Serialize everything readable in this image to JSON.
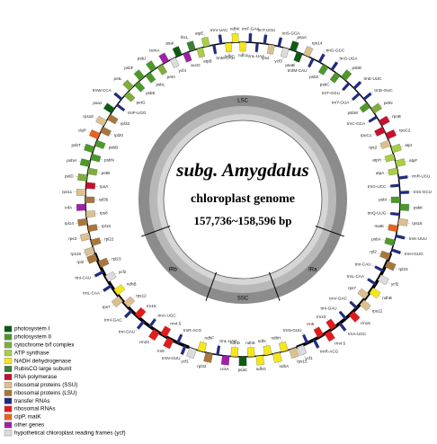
{
  "title": "subg. Amygdalus",
  "subtitle": "chloroplast genome",
  "size": "157,736~158,596 bp",
  "legend": [
    {
      "label": "photosystem I",
      "color": "#0e5a12"
    },
    {
      "label": "photosystem II",
      "color": "#4c9a2a"
    },
    {
      "label": "cytochrome b/f complex",
      "color": "#7fae3c"
    },
    {
      "label": "ATP synthase",
      "color": "#a9cf45"
    },
    {
      "label": "NADH dehydrogenase",
      "color": "#f5e71b"
    },
    {
      "label": "RubisCO large subunit",
      "color": "#3d7f37"
    },
    {
      "label": "RNA polymerase",
      "color": "#c8102e"
    },
    {
      "label": "ribosomal proteins (SSU)",
      "color": "#dcc190"
    },
    {
      "label": "ribosomal proteins (LSU)",
      "color": "#a9773b"
    },
    {
      "label": "transfer RNAs",
      "color": "#1f2a86"
    },
    {
      "label": "ribosomal RNAs",
      "color": "#e41a1c"
    },
    {
      "label": "clpP, matK",
      "color": "#e8641a"
    },
    {
      "label": "other genes",
      "color": "#a020a8"
    },
    {
      "label": "hypothetical chloroplast reading frames (ycf)",
      "color": "#dcdcdc"
    }
  ],
  "regions": [
    {
      "label": "LSC",
      "genes": [
        {
          "label": "trnH-GUG",
          "color": "#1f2a86"
        },
        {
          "label": "psbA",
          "color": "#4c9a2a"
        },
        {
          "label": "trnK-UUU",
          "color": "#1f2a86"
        },
        {
          "label": "matK",
          "color": "#e8641a"
        },
        {
          "label": "rps16",
          "color": "#dcc190"
        },
        {
          "label": "trnQ-UUG",
          "color": "#1f2a86"
        },
        {
          "label": "psbK",
          "color": "#4c9a2a"
        },
        {
          "label": "psbI",
          "color": "#4c9a2a"
        },
        {
          "label": "trnS-GCU",
          "color": "#1f2a86"
        },
        {
          "label": "trnG-UCC",
          "color": "#1f2a86"
        },
        {
          "label": "trnR-UCU",
          "color": "#1f2a86"
        },
        {
          "label": "atpA",
          "color": "#a9cf45"
        },
        {
          "label": "atpF",
          "color": "#a9cf45"
        },
        {
          "label": "atpH",
          "color": "#a9cf45"
        },
        {
          "label": "atpI",
          "color": "#a9cf45"
        },
        {
          "label": "rps2",
          "color": "#dcc190"
        },
        {
          "label": "rpoC2",
          "color": "#c8102e"
        },
        {
          "label": "rpoC1",
          "color": "#c8102e"
        },
        {
          "label": "rpoB",
          "color": "#c8102e"
        },
        {
          "label": "trnC-GCA",
          "color": "#1f2a86"
        },
        {
          "label": "petN",
          "color": "#7fae3c"
        },
        {
          "label": "psbM",
          "color": "#4c9a2a"
        },
        {
          "label": "trnD-GUC",
          "color": "#1f2a86"
        },
        {
          "label": "trnY-GUA",
          "color": "#1f2a86"
        },
        {
          "label": "trnE-UUC",
          "color": "#1f2a86"
        },
        {
          "label": "trnT-GGU",
          "color": "#1f2a86"
        },
        {
          "label": "psbD",
          "color": "#4c9a2a"
        },
        {
          "label": "psbC",
          "color": "#4c9a2a"
        },
        {
          "label": "trnS-UGA",
          "color": "#1f2a86"
        },
        {
          "label": "psbZ",
          "color": "#4c9a2a"
        },
        {
          "label": "trnG-GCC",
          "color": "#1f2a86"
        },
        {
          "label": "trnfM-CAU",
          "color": "#1f2a86"
        },
        {
          "label": "rps14",
          "color": "#dcc190"
        },
        {
          "label": "psaB",
          "color": "#0e5a12"
        },
        {
          "label": "psaA",
          "color": "#0e5a12"
        },
        {
          "label": "ycf3",
          "color": "#dcdcdc"
        },
        {
          "label": "trnS-GGA",
          "color": "#1f2a86"
        },
        {
          "label": "rps4",
          "color": "#dcc190"
        },
        {
          "label": "trnT-UGU",
          "color": "#1f2a86"
        },
        {
          "label": "trnL-UAA",
          "color": "#1f2a86"
        },
        {
          "label": "trnF-GAA",
          "color": "#1f2a86"
        },
        {
          "label": "ndhJ",
          "color": "#f5e71b"
        },
        {
          "label": "ndhK",
          "color": "#f5e71b"
        },
        {
          "label": "ndhC",
          "color": "#f5e71b"
        },
        {
          "label": "trnV-UAC",
          "color": "#1f2a86"
        },
        {
          "label": "trnM-CAU",
          "color": "#1f2a86"
        },
        {
          "label": "atpE",
          "color": "#a9cf45"
        },
        {
          "label": "atpB",
          "color": "#a9cf45"
        },
        {
          "label": "rbcL",
          "color": "#3d7f37"
        },
        {
          "label": "accD",
          "color": "#a020a8"
        },
        {
          "label": "psaI",
          "color": "#0e5a12"
        },
        {
          "label": "ycf4",
          "color": "#dcdcdc"
        },
        {
          "label": "cemA",
          "color": "#a020a8"
        },
        {
          "label": "petA",
          "color": "#7fae3c"
        },
        {
          "label": "psbJ",
          "color": "#4c9a2a"
        },
        {
          "label": "psbL",
          "color": "#4c9a2a"
        },
        {
          "label": "psbF",
          "color": "#4c9a2a"
        },
        {
          "label": "psbE",
          "color": "#4c9a2a"
        },
        {
          "label": "petL",
          "color": "#7fae3c"
        },
        {
          "label": "petG",
          "color": "#7fae3c"
        },
        {
          "label": "trnW-CCA",
          "color": "#1f2a86"
        },
        {
          "label": "trnP-UGG",
          "color": "#1f2a86"
        },
        {
          "label": "psaJ",
          "color": "#0e5a12"
        },
        {
          "label": "rpl33",
          "color": "#a9773b"
        },
        {
          "label": "rps18",
          "color": "#dcc190"
        },
        {
          "label": "rpl20",
          "color": "#a9773b"
        },
        {
          "label": "clpP",
          "color": "#e8641a"
        },
        {
          "label": "psbB",
          "color": "#4c9a2a"
        },
        {
          "label": "psbT",
          "color": "#4c9a2a"
        },
        {
          "label": "psbN",
          "color": "#4c9a2a"
        },
        {
          "label": "psbH",
          "color": "#4c9a2a"
        },
        {
          "label": "petB",
          "color": "#7fae3c"
        },
        {
          "label": "petD",
          "color": "#7fae3c"
        },
        {
          "label": "rpoA",
          "color": "#c8102e"
        },
        {
          "label": "rps11",
          "color": "#dcc190"
        },
        {
          "label": "rpl36",
          "color": "#a9773b"
        },
        {
          "label": "infA",
          "color": "#a020a8"
        },
        {
          "label": "rps8",
          "color": "#dcc190"
        },
        {
          "label": "rpl14",
          "color": "#a9773b"
        },
        {
          "label": "rpl16",
          "color": "#a9773b"
        },
        {
          "label": "rps3",
          "color": "#dcc190"
        },
        {
          "label": "rpl22",
          "color": "#a9773b"
        },
        {
          "label": "rps19",
          "color": "#dcc190"
        }
      ]
    },
    {
      "label": "IRb",
      "genes": [
        {
          "label": "rpl2",
          "color": "#a9773b"
        },
        {
          "label": "rpl23",
          "color": "#a9773b"
        },
        {
          "label": "trnI-CAU",
          "color": "#1f2a86"
        },
        {
          "label": "ycf2",
          "color": "#dcdcdc"
        },
        {
          "label": "trnL-CAA",
          "color": "#1f2a86"
        },
        {
          "label": "ndhB",
          "color": "#f5e71b"
        },
        {
          "label": "rps7",
          "color": "#dcc190"
        },
        {
          "label": "rps12",
          "color": "#dcc190"
        },
        {
          "label": "trnV-GAC",
          "color": "#1f2a86"
        },
        {
          "label": "rrn16",
          "color": "#e41a1c"
        },
        {
          "label": "trnI-GAU",
          "color": "#1f2a86"
        },
        {
          "label": "trnA-UGC",
          "color": "#1f2a86"
        },
        {
          "label": "rrn23",
          "color": "#e41a1c"
        },
        {
          "label": "rrn4.5",
          "color": "#e41a1c"
        },
        {
          "label": "rrn5",
          "color": "#e41a1c"
        },
        {
          "label": "trnR-ACG",
          "color": "#1f2a86"
        },
        {
          "label": "trnN-GUU",
          "color": "#1f2a86"
        }
      ]
    },
    {
      "label": "SSC",
      "genes": [
        {
          "label": "ycf1",
          "color": "#dcdcdc"
        },
        {
          "label": "ndhF",
          "color": "#f5e71b"
        },
        {
          "label": "rpl32",
          "color": "#a9773b"
        },
        {
          "label": "trnL-UAG",
          "color": "#1f2a86"
        },
        {
          "label": "ccsA",
          "color": "#a020a8"
        },
        {
          "label": "ndhD",
          "color": "#f5e71b"
        },
        {
          "label": "psaC",
          "color": "#0e5a12"
        },
        {
          "label": "ndhE",
          "color": "#f5e71b"
        },
        {
          "label": "ndhG",
          "color": "#f5e71b"
        },
        {
          "label": "ndhI",
          "color": "#f5e71b"
        },
        {
          "label": "ndhA",
          "color": "#f5e71b"
        },
        {
          "label": "ndhH",
          "color": "#f5e71b"
        },
        {
          "label": "rps15",
          "color": "#dcc190"
        }
      ]
    },
    {
      "label": "IRa",
      "genes": [
        {
          "label": "ycf1",
          "color": "#dcdcdc"
        },
        {
          "label": "trnN-GUU",
          "color": "#1f2a86"
        },
        {
          "label": "trnR-ACG",
          "color": "#1f2a86"
        },
        {
          "label": "rrn5",
          "color": "#e41a1c"
        },
        {
          "label": "rrn4.5",
          "color": "#e41a1c"
        },
        {
          "label": "rrn23",
          "color": "#e41a1c"
        },
        {
          "label": "trnA-UGC",
          "color": "#1f2a86"
        },
        {
          "label": "trnI-GAU",
          "color": "#1f2a86"
        },
        {
          "label": "rrn16",
          "color": "#e41a1c"
        },
        {
          "label": "trnV-GAC",
          "color": "#1f2a86"
        },
        {
          "label": "rps12",
          "color": "#dcc190"
        },
        {
          "label": "rps7",
          "color": "#dcc190"
        },
        {
          "label": "ndhB",
          "color": "#f5e71b"
        },
        {
          "label": "trnL-CAA",
          "color": "#1f2a86"
        },
        {
          "label": "ycf2",
          "color": "#dcdcdc"
        },
        {
          "label": "trnI-CAU",
          "color": "#1f2a86"
        },
        {
          "label": "rpl23",
          "color": "#a9773b"
        },
        {
          "label": "rpl2",
          "color": "#a9773b"
        }
      ]
    }
  ]
}
